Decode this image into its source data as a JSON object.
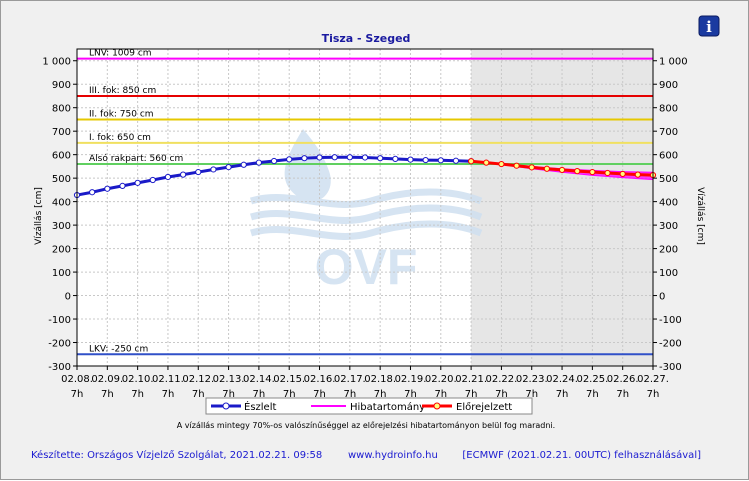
{
  "colors": {
    "plot_bg": "#ffffff",
    "forecast_bg": "#e6e6e6",
    "grid": "#c8c8c8",
    "observed": "#1a1ac8",
    "error_band": "#ff00ff",
    "forecast": "#ff0000",
    "text_blue": "#1a1aa0",
    "footer_blue": "#1a1ad0",
    "watermark": "#cfe0f0"
  },
  "info_icon": "info-icon",
  "watermark_text": "OVF",
  "chart_data": {
    "type": "line",
    "title": "Tisza - Szeged",
    "ylabel_left": "Vízállás [cm]",
    "ylabel_right": "Vízállás [cm]",
    "ylim": [
      -300,
      1050
    ],
    "yticks": [
      -300,
      -200,
      -100,
      0,
      100,
      200,
      300,
      400,
      500,
      600,
      700,
      800,
      900,
      1000
    ],
    "ytick_labels": [
      "-300",
      "-200",
      "-100",
      "0",
      "100",
      "200",
      "300",
      "400",
      "500",
      "600",
      "700",
      "800",
      "900",
      "1 000"
    ],
    "xticks": [
      "02.08.",
      "02.09.",
      "02.10.",
      "02.11.",
      "02.12.",
      "02.13.",
      "02.14.",
      "02.15.",
      "02.16.",
      "02.17.",
      "02.18.",
      "02.19.",
      "02.20.",
      "02.21.",
      "02.22.",
      "02.23.",
      "02.24.",
      "02.25.",
      "02.26.",
      "02.27."
    ],
    "xtick_sub": "7h",
    "forecast_start_index": 13,
    "grid": true,
    "legend_placement": "bottom-center",
    "levels": [
      {
        "label": "LNV: 1009 cm",
        "value": 1009,
        "color": "#ff00ff"
      },
      {
        "label": "III. fok: 850 cm",
        "value": 850,
        "color": "#e60000"
      },
      {
        "label": "II. fok: 750 cm",
        "value": 750,
        "color": "#e6c800"
      },
      {
        "label": "I. fok: 650 cm",
        "value": 650,
        "color": "#f0e060"
      },
      {
        "label": "Alsó rakpart: 560 cm",
        "value": 560,
        "color": "#60d060"
      },
      {
        "label": "LKV: -250 cm",
        "value": -250,
        "color": "#3050c8"
      }
    ],
    "series": [
      {
        "name": "Észlelt",
        "color": "#1a1ac8",
        "points": [
          [
            0,
            428
          ],
          [
            0.5,
            440
          ],
          [
            1,
            455
          ],
          [
            1.5,
            467
          ],
          [
            2,
            480
          ],
          [
            2.5,
            492
          ],
          [
            3,
            505
          ],
          [
            3.5,
            515
          ],
          [
            4,
            526
          ],
          [
            4.5,
            537
          ],
          [
            5,
            547
          ],
          [
            5.5,
            557
          ],
          [
            6,
            566
          ],
          [
            6.5,
            573
          ],
          [
            7,
            580
          ],
          [
            7.5,
            585
          ],
          [
            8,
            588
          ],
          [
            8.5,
            589
          ],
          [
            9,
            589
          ],
          [
            9.5,
            588
          ],
          [
            10,
            585
          ],
          [
            10.5,
            582
          ],
          [
            11,
            579
          ],
          [
            11.5,
            577
          ],
          [
            12,
            576
          ],
          [
            12.5,
            574
          ],
          [
            13,
            572
          ]
        ]
      },
      {
        "name": "Hibatartomány",
        "color": "#ff00ff",
        "upper": [
          [
            13,
            572
          ],
          [
            14,
            562
          ],
          [
            15,
            550
          ],
          [
            16,
            540
          ],
          [
            17,
            533
          ],
          [
            18,
            528
          ],
          [
            19,
            525
          ]
        ],
        "lower": [
          [
            13,
            572
          ],
          [
            14,
            558
          ],
          [
            15,
            540
          ],
          [
            16,
            525
          ],
          [
            17,
            512
          ],
          [
            18,
            502
          ],
          [
            19,
            494
          ]
        ]
      },
      {
        "name": "Előrejelzett",
        "color": "#ff0000",
        "points": [
          [
            13,
            572
          ],
          [
            13.5,
            566
          ],
          [
            14,
            560
          ],
          [
            14.5,
            553
          ],
          [
            15,
            546
          ],
          [
            15.5,
            540
          ],
          [
            16,
            535
          ],
          [
            16.5,
            530
          ],
          [
            17,
            526
          ],
          [
            17.5,
            522
          ],
          [
            18,
            518
          ],
          [
            18.5,
            515
          ],
          [
            19,
            513
          ]
        ]
      }
    ]
  },
  "legend": {
    "observed": "Észlelt",
    "error_band": "Hibatartomány",
    "forecast": "Előrejelzett"
  },
  "note": "A vízállás mintegy 70%-os valószínűséggel az előrejelzési hibatartományon belül fog maradni.",
  "footer": {
    "left": "Készítette: Országos Vízjelző Szolgálat, 2021.02.21. 09:58",
    "center": "www.hydroinfo.hu",
    "right": "[ECMWF (2021.02.21. 00UTC) felhasználásával]"
  }
}
